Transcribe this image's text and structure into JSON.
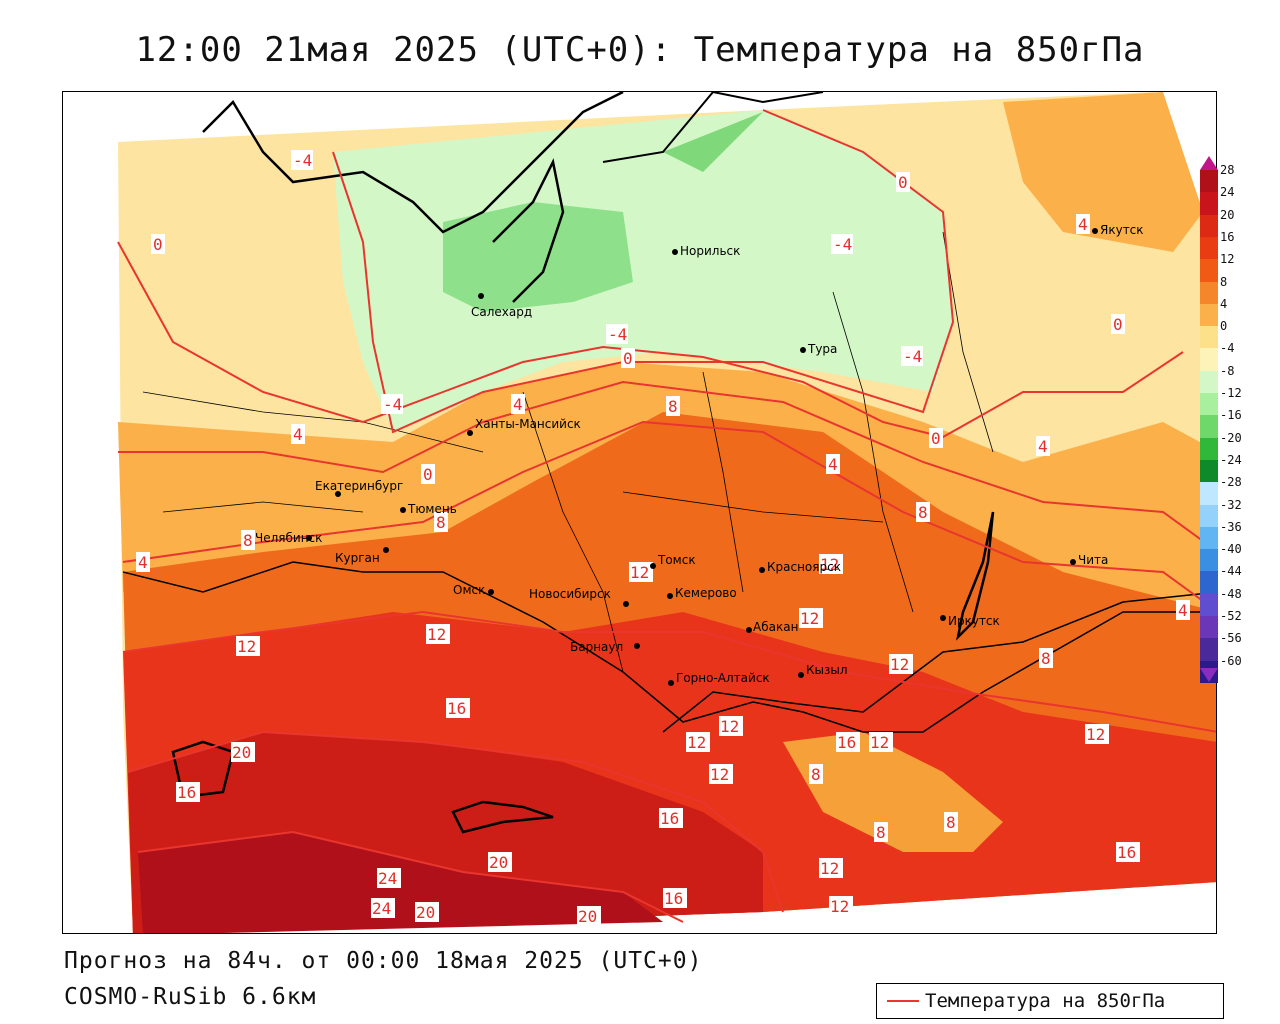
{
  "title": "12:00 21мая 2025 (UTC+0): Температура на 850гПа",
  "footer": {
    "forecast": "Прогноз на 84ч. от 00:00 18мая 2025 (UTC+0)",
    "model": "COSMO-RuSib 6.6км"
  },
  "legend": {
    "label": "Температура на 850гПа",
    "line_color": "#e8362f"
  },
  "colorbar": {
    "ticks": [
      "28",
      "24",
      "20",
      "16",
      "12",
      "8",
      "4",
      "0",
      "-4",
      "-8",
      "-12",
      "-16",
      "-20",
      "-24",
      "-28",
      "-32",
      "-36",
      "-40",
      "-44",
      "-48",
      "-52",
      "-56",
      "-60"
    ],
    "colors": [
      "#b0101a",
      "#c8141a",
      "#dc2a14",
      "#ea3c12",
      "#f05a14",
      "#f6862a",
      "#fbb04a",
      "#fde08a",
      "#fdf3b8",
      "#d4f7c8",
      "#a8ef9e",
      "#6fd86a",
      "#2fb83a",
      "#0f8a2a",
      "#bfe7ff",
      "#94d2fb",
      "#62b5f3",
      "#3a8fe3",
      "#2e66cf",
      "#5f4fd0",
      "#6b36b8",
      "#4a2a9a",
      "#2a1a8a"
    ]
  },
  "cities": [
    {
      "name": "Салехард"
    },
    {
      "name": "Норильск"
    },
    {
      "name": "Тура"
    },
    {
      "name": "Якутск"
    },
    {
      "name": "Ханты-Мансийск"
    },
    {
      "name": "Екатеринбург"
    },
    {
      "name": "Тюмень"
    },
    {
      "name": "Челябинск"
    },
    {
      "name": "Курган"
    },
    {
      "name": "Омск"
    },
    {
      "name": "Новосибирск"
    },
    {
      "name": "Томск"
    },
    {
      "name": "Кемерово"
    },
    {
      "name": "Красноярск"
    },
    {
      "name": "Барнаул"
    },
    {
      "name": "Абакан"
    },
    {
      "name": "Иркутск"
    },
    {
      "name": "Горно-Алтайск"
    },
    {
      "name": "Кызыл"
    },
    {
      "name": "Чита"
    }
  ],
  "contour_labels": [
    "-4",
    "0",
    "4",
    "8",
    "12",
    "16",
    "20",
    "24"
  ]
}
